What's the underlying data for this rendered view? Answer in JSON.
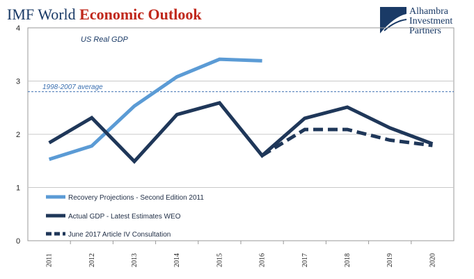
{
  "title": {
    "part1": "IMF World ",
    "part2": "Economic Outlook"
  },
  "brand": {
    "line1": "Alhambra",
    "line2": "Investment",
    "line3": "Partners"
  },
  "chart_data": {
    "type": "line",
    "subtitle": "US Real GDP",
    "categories": [
      "2011",
      "2012",
      "2013",
      "2014",
      "2015",
      "2016",
      "2017",
      "2018",
      "2019",
      "2020"
    ],
    "ylim": [
      0,
      4
    ],
    "yticks": [
      "0",
      "1",
      "2",
      "3",
      "4"
    ],
    "grid": true,
    "reference_line": {
      "label": "1998-2007 average",
      "value": 2.8,
      "color": "#3a6fb0"
    },
    "series": [
      {
        "name": "Recovery Projections - Second Edition 2011",
        "color": "#5b9bd5",
        "dashed": false,
        "values": [
          1.53,
          1.78,
          2.53,
          3.08,
          3.41,
          3.38,
          null,
          null,
          null,
          null
        ]
      },
      {
        "name": "Actual GDP - Latest Estimates WEO",
        "color": "#1f3759",
        "dashed": false,
        "values": [
          1.84,
          2.31,
          1.49,
          2.37,
          2.59,
          1.6,
          2.3,
          2.51,
          2.12,
          1.82
        ]
      },
      {
        "name": "June 2017 Article IV Consultation",
        "color": "#1f3759",
        "dashed": true,
        "values": [
          null,
          null,
          null,
          null,
          null,
          1.6,
          2.09,
          2.09,
          1.89,
          1.79
        ]
      }
    ]
  }
}
